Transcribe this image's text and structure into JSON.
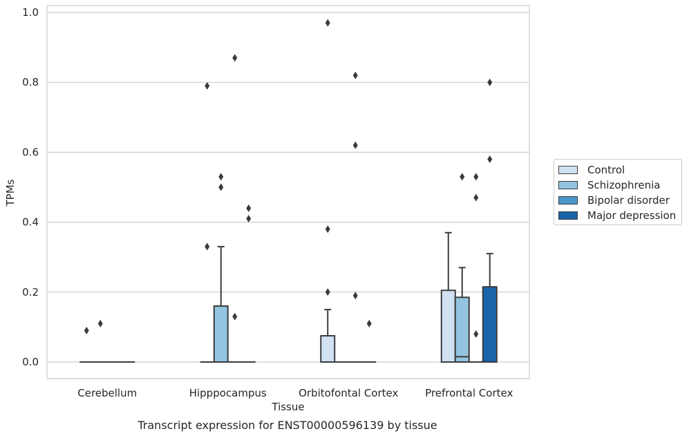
{
  "chart_data": {
    "type": "box",
    "xlabel": "Tissue",
    "ylabel": "TPMs",
    "caption": "Transcript expression for ENST00000596139 by tissue",
    "ylim": [
      -0.045,
      1.02
    ],
    "yticks": [
      "0.0",
      "0.2",
      "0.4",
      "0.6",
      "0.8",
      "1.0"
    ],
    "ytick_values": [
      0.0,
      0.2,
      0.4,
      0.6,
      0.8,
      1.0
    ],
    "grid": true,
    "legend_position": "right",
    "categories": [
      "Cerebellum",
      "Hipppocampus",
      "Orbitofontal Cortex",
      "Prefrontal Cortex"
    ],
    "series": [
      {
        "name": "Control",
        "color": "#d0e1f2",
        "boxes": [
          {
            "q1": 0.0,
            "median": 0.0,
            "q3": 0.0,
            "whisker_low": 0.0,
            "whisker_high": 0.0,
            "outliers": [
              0.09
            ]
          },
          {
            "q1": 0.0,
            "median": 0.0,
            "q3": 0.0,
            "whisker_low": 0.0,
            "whisker_high": 0.0,
            "outliers": [
              0.79,
              0.33
            ]
          },
          {
            "q1": 0.0,
            "median": 0.0,
            "q3": 0.075,
            "whisker_low": 0.0,
            "whisker_high": 0.15,
            "outliers": [
              0.97,
              0.38,
              0.2
            ]
          },
          {
            "q1": 0.0,
            "median": 0.0,
            "q3": 0.205,
            "whisker_low": 0.0,
            "whisker_high": 0.37,
            "outliers": []
          }
        ]
      },
      {
        "name": "Schizophrenia",
        "color": "#94c4df",
        "boxes": [
          {
            "q1": 0.0,
            "median": 0.0,
            "q3": 0.0,
            "whisker_low": 0.0,
            "whisker_high": 0.0,
            "outliers": [
              0.11
            ]
          },
          {
            "q1": 0.0,
            "median": 0.0,
            "q3": 0.16,
            "whisker_low": 0.0,
            "whisker_high": 0.33,
            "outliers": [
              0.53,
              0.5
            ]
          },
          {
            "q1": 0.0,
            "median": 0.0,
            "q3": 0.0,
            "whisker_low": 0.0,
            "whisker_high": 0.0,
            "outliers": []
          },
          {
            "q1": 0.0,
            "median": 0.015,
            "q3": 0.185,
            "whisker_low": 0.0,
            "whisker_high": 0.27,
            "outliers": [
              0.53
            ]
          }
        ]
      },
      {
        "name": "Bipolar disorder",
        "color": "#4a98c9",
        "boxes": [
          {
            "q1": 0.0,
            "median": 0.0,
            "q3": 0.0,
            "whisker_low": 0.0,
            "whisker_high": 0.0,
            "outliers": []
          },
          {
            "q1": 0.0,
            "median": 0.0,
            "q3": 0.0,
            "whisker_low": 0.0,
            "whisker_high": 0.0,
            "outliers": [
              0.87,
              0.13
            ]
          },
          {
            "q1": 0.0,
            "median": 0.0,
            "q3": 0.0,
            "whisker_low": 0.0,
            "whisker_high": 0.0,
            "outliers": [
              0.82,
              0.62,
              0.19
            ]
          },
          {
            "q1": 0.0,
            "median": 0.0,
            "q3": 0.0,
            "whisker_low": 0.0,
            "whisker_high": 0.0,
            "outliers": [
              0.53,
              0.47,
              0.08
            ]
          }
        ]
      },
      {
        "name": "Major depression",
        "color": "#1764ab",
        "boxes": [
          {
            "q1": 0.0,
            "median": 0.0,
            "q3": 0.0,
            "whisker_low": 0.0,
            "whisker_high": 0.0,
            "outliers": []
          },
          {
            "q1": 0.0,
            "median": 0.0,
            "q3": 0.0,
            "whisker_low": 0.0,
            "whisker_high": 0.0,
            "outliers": [
              0.44,
              0.41
            ]
          },
          {
            "q1": 0.0,
            "median": 0.0,
            "q3": 0.0,
            "whisker_low": 0.0,
            "whisker_high": 0.0,
            "outliers": [
              0.11
            ]
          },
          {
            "q1": 0.0,
            "median": 0.0,
            "q3": 0.215,
            "whisker_low": 0.0,
            "whisker_high": 0.31,
            "outliers": [
              0.8,
              0.58
            ]
          }
        ]
      }
    ]
  }
}
